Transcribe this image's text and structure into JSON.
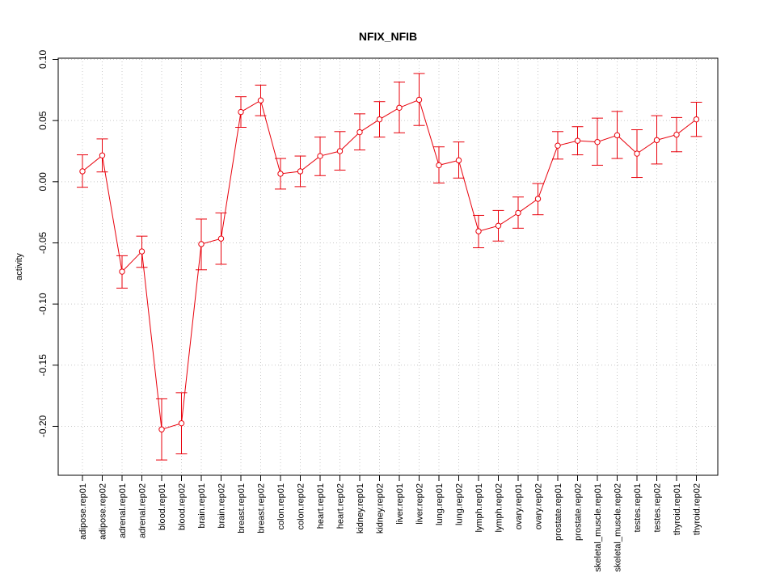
{
  "chart_data": {
    "type": "line",
    "title": "NFIX_NFIB",
    "xlabel": "",
    "ylabel": "activity",
    "ylim": [
      -0.24,
      0.101
    ],
    "y_ticks": [
      -0.2,
      -0.15,
      -0.1,
      -0.05,
      0.0,
      0.05,
      0.1
    ],
    "y_tick_labels": [
      "-0.20",
      "-0.15",
      "-0.10",
      "-0.05",
      "0.00",
      "0.05",
      "0.10"
    ],
    "grid": true,
    "legend": "none",
    "colors": {
      "series": "#e8000b",
      "grid": "#c8c8c8",
      "axis": "#000000"
    },
    "categories": [
      "adipose.rep01",
      "adipose.rep02",
      "adrenal.rep01",
      "adrenal.rep02",
      "blood.rep01",
      "blood.rep02",
      "brain.rep01",
      "brain.rep02",
      "breast.rep01",
      "breast.rep02",
      "colon.rep01",
      "colon.rep02",
      "heart.rep01",
      "heart.rep02",
      "kidney.rep01",
      "kidney.rep02",
      "liver.rep01",
      "liver.rep02",
      "lung.rep01",
      "lung.rep02",
      "lymph.rep01",
      "lymph.rep02",
      "ovary.rep01",
      "ovary.rep02",
      "prostate.rep01",
      "prostate.rep02",
      "skeletal_muscle.rep01",
      "skeletal_muscle.rep02",
      "testes.rep01",
      "testes.rep02",
      "thyroid.rep01",
      "thyroid.rep02"
    ],
    "series": [
      {
        "values": [
          0.0085,
          0.0215,
          -0.0735,
          -0.057,
          -0.2025,
          -0.1975,
          -0.051,
          -0.0465,
          0.057,
          0.0665,
          0.0065,
          0.0085,
          0.021,
          0.025,
          0.0405,
          0.051,
          0.0605,
          0.067,
          0.0135,
          0.0175,
          -0.0405,
          -0.036,
          -0.0255,
          -0.014,
          0.0295,
          0.0335,
          0.0325,
          0.038,
          0.023,
          0.034,
          0.0385,
          0.051
        ],
        "lower": [
          -0.0045,
          0.008,
          -0.087,
          -0.07,
          -0.2275,
          -0.2225,
          -0.072,
          -0.0675,
          0.0445,
          0.054,
          -0.006,
          -0.004,
          0.005,
          0.0095,
          0.026,
          0.0365,
          0.04,
          0.046,
          -0.001,
          0.003,
          -0.054,
          -0.0485,
          -0.038,
          -0.027,
          0.0185,
          0.022,
          0.0135,
          0.019,
          0.0035,
          0.0145,
          0.0245,
          0.037
        ],
        "upper": [
          0.022,
          0.035,
          -0.0605,
          -0.0445,
          -0.1775,
          -0.1725,
          -0.0305,
          -0.0255,
          0.0695,
          0.079,
          0.019,
          0.021,
          0.0365,
          0.041,
          0.0555,
          0.0655,
          0.0815,
          0.0885,
          0.0285,
          0.0325,
          -0.0275,
          -0.0235,
          -0.0125,
          -0.0015,
          0.041,
          0.045,
          0.052,
          0.0575,
          0.0425,
          0.054,
          0.0525,
          0.065
        ]
      }
    ]
  }
}
